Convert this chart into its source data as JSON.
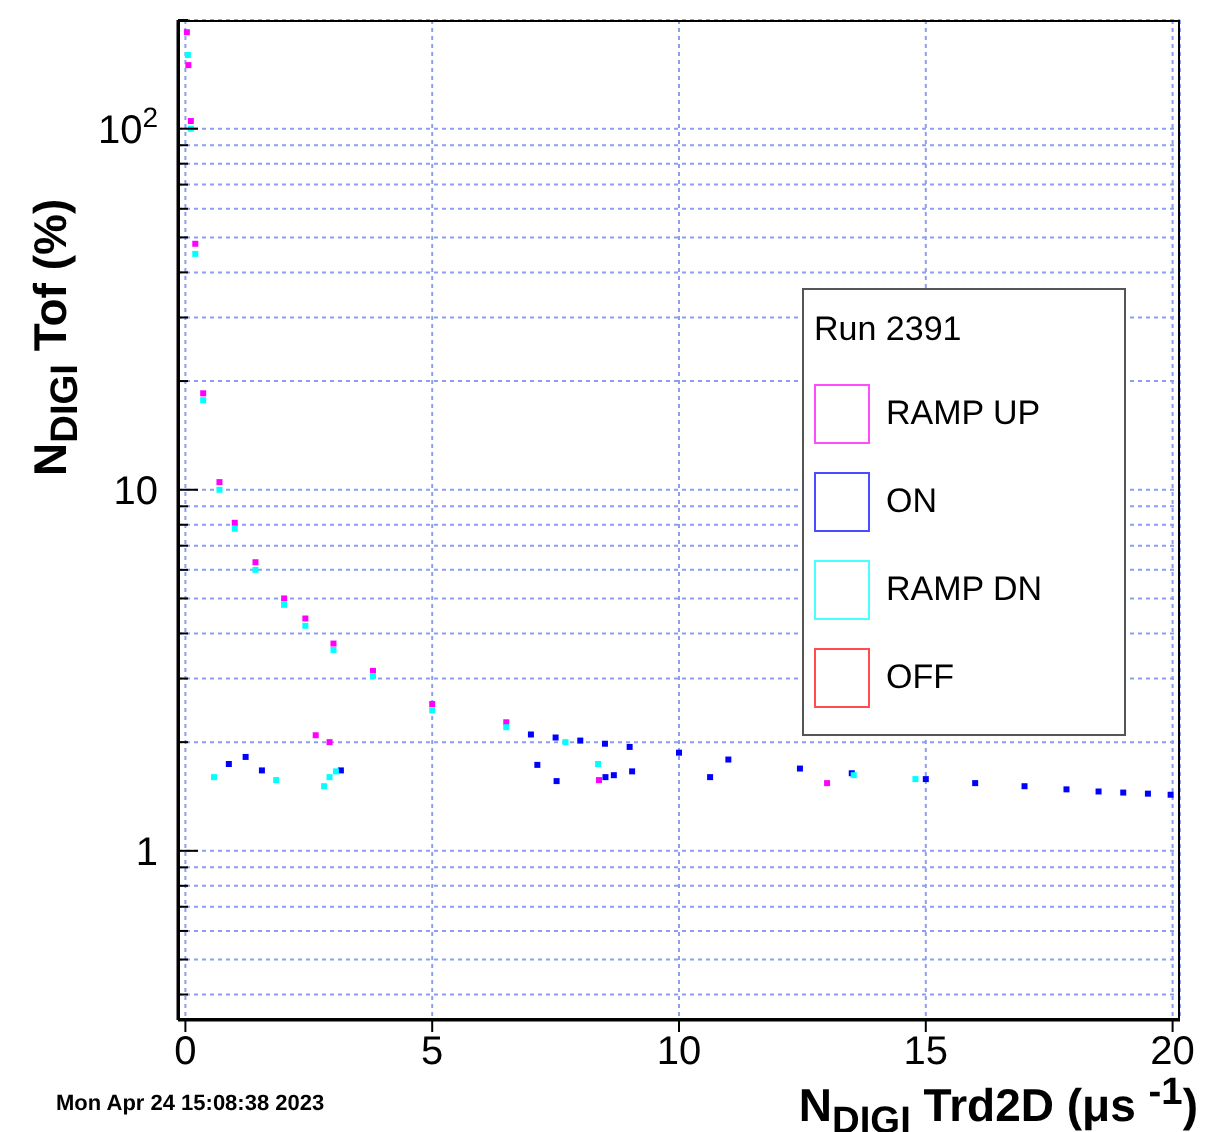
{
  "chart_data": {
    "type": "scatter",
    "xlabel": "N$_{DIGI}$ Trd2D (μs $^{-1}$)",
    "ylabel": "N$_{DIGI}$ Tof (%)",
    "legend_title": "Run 2391",
    "annotations": [
      "Mon Apr 24 15:08:38 2023"
    ],
    "log": "y",
    "grid": true,
    "legend": "right",
    "marker": "square",
    "xlim": [
      -0.15,
      20.15
    ],
    "xticks": [
      0,
      5,
      10,
      15,
      20
    ],
    "ylim": [
      0.34,
      200
    ],
    "yticks": [
      {
        "value": 0.4,
        "label": null
      },
      {
        "value": 0.5,
        "label": null
      },
      {
        "value": 0.6,
        "label": null
      },
      {
        "value": 0.7,
        "label": null
      },
      {
        "value": 0.8,
        "label": null
      },
      {
        "value": 0.9,
        "label": null
      },
      1,
      {
        "value": 2,
        "label": null
      },
      {
        "value": 3,
        "label": null
      },
      {
        "value": 4,
        "label": null
      },
      {
        "value": 5,
        "label": null
      },
      {
        "value": 6,
        "label": null
      },
      {
        "value": 7,
        "label": null
      },
      {
        "value": 8,
        "label": null
      },
      {
        "value": 9,
        "label": null
      },
      10,
      {
        "value": 20,
        "label": null
      },
      {
        "value": 30,
        "label": null
      },
      {
        "value": 40,
        "label": null
      },
      {
        "value": 50,
        "label": null
      },
      {
        "value": 60,
        "label": null
      },
      {
        "value": 70,
        "label": null
      },
      {
        "value": 80,
        "label": null
      },
      {
        "value": 90,
        "label": null
      },
      {
        "value": 100,
        "label": "10$^{2}$"
      },
      {
        "value": 200,
        "label": null
      }
    ],
    "series": [
      {
        "name": "RAMP UP",
        "color": "#ff00ff",
        "x": [
          0.03,
          0.06,
          0.11,
          0.2,
          0.36,
          0.69,
          1.0,
          1.42,
          2.0,
          2.43,
          3.0,
          3.8,
          5.0,
          6.5,
          2.64,
          2.92,
          8.38,
          13.0
        ],
        "values": [
          185,
          150,
          105,
          48,
          18.5,
          10.5,
          8.1,
          6.3,
          5.0,
          4.4,
          3.75,
          3.15,
          2.55,
          2.27,
          2.09,
          2.0,
          1.57,
          1.54
        ]
      },
      {
        "name": "ON",
        "color": "#0000ff",
        "x": [
          7.0,
          7.5,
          8.0,
          8.5,
          9.0,
          10.0,
          11.0,
          12.45,
          13.5,
          15.0,
          16.0,
          17.0,
          17.85,
          18.5,
          19.0,
          19.5,
          19.96,
          0.88,
          1.22,
          1.55,
          3.15,
          7.13,
          7.52,
          8.51,
          8.68,
          9.05,
          10.63
        ],
        "values": [
          2.1,
          2.06,
          2.02,
          1.98,
          1.94,
          1.87,
          1.79,
          1.69,
          1.64,
          1.58,
          1.54,
          1.51,
          1.48,
          1.46,
          1.45,
          1.44,
          1.43,
          1.74,
          1.82,
          1.67,
          1.67,
          1.73,
          1.56,
          1.6,
          1.62,
          1.66,
          1.6
        ]
      },
      {
        "name": "RAMP DN",
        "color": "#00ffff",
        "x": [
          0.05,
          0.11,
          0.2,
          0.36,
          0.69,
          1.0,
          1.42,
          2.0,
          2.43,
          3.0,
          3.8,
          5.0,
          6.5,
          7.7,
          0.58,
          1.84,
          2.81,
          2.92,
          3.05,
          8.36,
          13.54,
          14.79
        ],
        "values": [
          160,
          100,
          45,
          17.7,
          10,
          7.8,
          6.0,
          4.8,
          4.2,
          3.6,
          3.05,
          2.45,
          2.2,
          2.0,
          1.6,
          1.57,
          1.51,
          1.6,
          1.66,
          1.74,
          1.62,
          1.58
        ]
      },
      {
        "name": "OFF",
        "color": "#ff0000"
      }
    ]
  }
}
